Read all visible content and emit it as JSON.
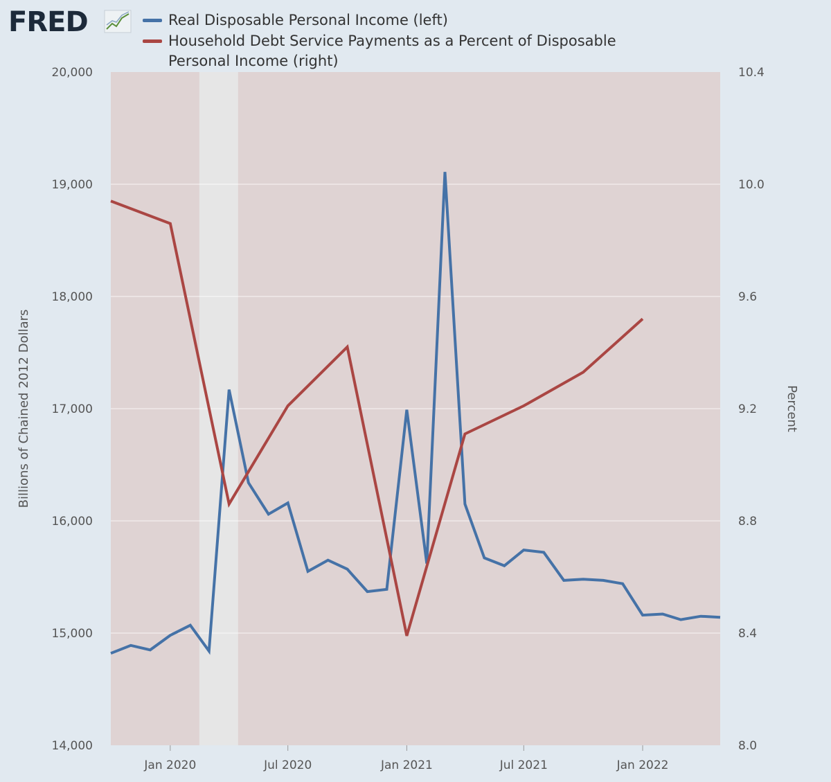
{
  "brand": {
    "logo_text": "FRED",
    "logo_icon": "line-chart-icon"
  },
  "chart_data": {
    "type": "line",
    "title": "",
    "xlabel": "",
    "ylabel": "Billions of Chained 2012 Dollars",
    "y2label": "Percent",
    "xlim": [
      "2019-10-01",
      "2022-05-01"
    ],
    "ylim": [
      14000,
      20000
    ],
    "y2lim": [
      8.0,
      10.4
    ],
    "x_ticks": [
      {
        "date": "2020-01-01",
        "label": "Jan 2020"
      },
      {
        "date": "2020-07-01",
        "label": "Jul 2020"
      },
      {
        "date": "2021-01-01",
        "label": "Jan 2021"
      },
      {
        "date": "2021-07-01",
        "label": "Jul 2021"
      },
      {
        "date": "2022-01-01",
        "label": "Jan 2022"
      }
    ],
    "y_ticks": [
      {
        "value": 14000,
        "label": "14,000"
      },
      {
        "value": 15000,
        "label": "15,000"
      },
      {
        "value": 16000,
        "label": "16,000"
      },
      {
        "value": 17000,
        "label": "17,000"
      },
      {
        "value": 18000,
        "label": "18,000"
      },
      {
        "value": 19000,
        "label": "19,000"
      },
      {
        "value": 20000,
        "label": "20,000"
      }
    ],
    "y2_ticks": [
      {
        "value": 8.0,
        "label": "8.0"
      },
      {
        "value": 8.4,
        "label": "8.4"
      },
      {
        "value": 8.8,
        "label": "8.8"
      },
      {
        "value": 9.2,
        "label": "9.2"
      },
      {
        "value": 9.6,
        "label": "9.6"
      },
      {
        "value": 10.0,
        "label": "10.0"
      },
      {
        "value": 10.4,
        "label": "10.4"
      }
    ],
    "recession": {
      "start": "2020-02-15",
      "end": "2020-04-15"
    },
    "grid": true,
    "legend_position": "top",
    "background_color": "#dfd3d3",
    "recession_color": "#e6e6e6",
    "series": [
      {
        "name": "Real Disposable Personal Income (left)",
        "axis": "left",
        "color": "#4572a7",
        "points": [
          [
            "2019-10-01",
            14820
          ],
          [
            "2019-11-01",
            14890
          ],
          [
            "2019-12-01",
            14850
          ],
          [
            "2020-01-01",
            14980
          ],
          [
            "2020-02-01",
            15070
          ],
          [
            "2020-03-01",
            14840
          ],
          [
            "2020-04-01",
            17170
          ],
          [
            "2020-05-01",
            16340
          ],
          [
            "2020-06-01",
            16060
          ],
          [
            "2020-07-01",
            16160
          ],
          [
            "2020-08-01",
            15550
          ],
          [
            "2020-09-01",
            15650
          ],
          [
            "2020-10-01",
            15570
          ],
          [
            "2020-11-01",
            15370
          ],
          [
            "2020-12-01",
            15390
          ],
          [
            "2021-01-01",
            16990
          ],
          [
            "2021-02-01",
            15620
          ],
          [
            "2021-03-01",
            19110
          ],
          [
            "2021-04-01",
            16150
          ],
          [
            "2021-05-01",
            15670
          ],
          [
            "2021-06-01",
            15600
          ],
          [
            "2021-07-01",
            15740
          ],
          [
            "2021-08-01",
            15720
          ],
          [
            "2021-09-01",
            15470
          ],
          [
            "2021-10-01",
            15480
          ],
          [
            "2021-11-01",
            15470
          ],
          [
            "2021-12-01",
            15440
          ],
          [
            "2022-01-01",
            15160
          ],
          [
            "2022-02-01",
            15170
          ],
          [
            "2022-03-01",
            15120
          ],
          [
            "2022-04-01",
            15150
          ],
          [
            "2022-05-01",
            15140
          ]
        ]
      },
      {
        "name": "Household Debt Service Payments as a Percent of Disposable Personal Income (right)",
        "axis": "right",
        "color": "#aa4643",
        "points": [
          [
            "2019-10-01",
            9.94
          ],
          [
            "2020-01-01",
            9.86
          ],
          [
            "2020-04-01",
            8.86
          ],
          [
            "2020-07-01",
            9.21
          ],
          [
            "2020-10-01",
            9.42
          ],
          [
            "2021-01-01",
            8.39
          ],
          [
            "2021-04-01",
            9.11
          ],
          [
            "2021-07-01",
            9.21
          ],
          [
            "2021-10-01",
            9.33
          ],
          [
            "2022-01-01",
            9.52
          ]
        ]
      }
    ]
  }
}
